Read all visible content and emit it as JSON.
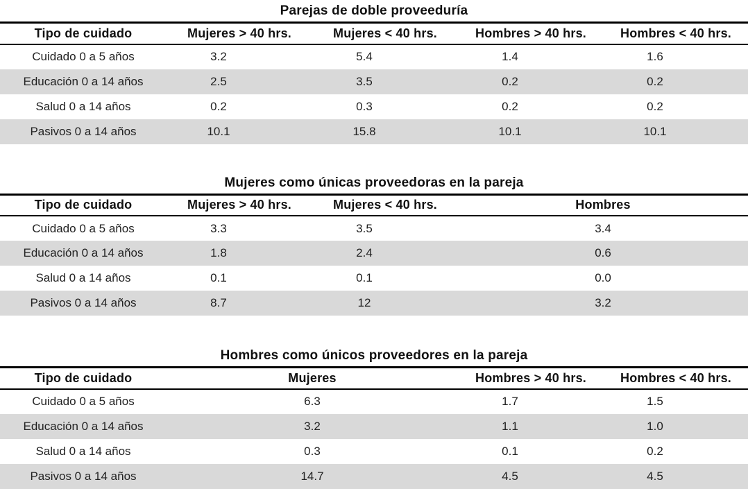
{
  "page": {
    "background": "#ffffff",
    "stripe_color": "#d9d9d9",
    "border_color": "#000000",
    "text_color": "#1f1f1f"
  },
  "tables": [
    {
      "title": "Parejas de doble proveeduría",
      "columns": [
        "Tipo de cuidado",
        "Mujeres > 40 hrs.",
        "Mujeres < 40 hrs.",
        "Hombres > 40 hrs.",
        "Hombres < 40 hrs."
      ],
      "rows": [
        {
          "label": "Cuidado 0 a 5 años",
          "values": [
            "3.2",
            "5.4",
            "1.4",
            "1.6"
          ]
        },
        {
          "label": "Educación 0 a 14 años",
          "values": [
            "2.5",
            "3.5",
            "0.2",
            "0.2"
          ]
        },
        {
          "label": "Salud 0 a 14 años",
          "values": [
            "0.2",
            "0.3",
            "0.2",
            "0.2"
          ]
        },
        {
          "label": "Pasivos 0 a 14 años",
          "values": [
            "10.1",
            "15.8",
            "10.1",
            "10.1"
          ]
        }
      ]
    },
    {
      "title": "Mujeres como únicas proveedoras en la pareja",
      "columns": [
        "Tipo de cuidado",
        "Mujeres > 40 hrs.",
        "Mujeres < 40 hrs.",
        "Hombres"
      ],
      "rows": [
        {
          "label": "Cuidado 0 a 5 años",
          "values": [
            "3.3",
            "3.5",
            "3.4"
          ]
        },
        {
          "label": "Educación 0 a 14 años",
          "values": [
            "1.8",
            "2.4",
            "0.6"
          ]
        },
        {
          "label": "Salud 0 a 14 años",
          "values": [
            "0.1",
            "0.1",
            "0.0"
          ]
        },
        {
          "label": "Pasivos 0 a 14 años",
          "values": [
            "8.7",
            "12",
            "3.2"
          ]
        }
      ]
    },
    {
      "title": "Hombres como únicos proveedores en la pareja",
      "columns": [
        "Tipo de cuidado",
        "Mujeres",
        "Hombres > 40 hrs.",
        "Hombres < 40 hrs."
      ],
      "rows": [
        {
          "label": "Cuidado 0 a 5 años",
          "values": [
            "6.3",
            "1.7",
            "1.5"
          ]
        },
        {
          "label": "Educación 0 a 14 años",
          "values": [
            "3.2",
            "1.1",
            "1.0"
          ]
        },
        {
          "label": "Salud 0 a 14 años",
          "values": [
            "0.3",
            "0.1",
            "0.2"
          ]
        },
        {
          "label": "Pasivos 0 a 14 años",
          "values": [
            "14.7",
            "4.5",
            "4.5"
          ]
        }
      ]
    }
  ]
}
